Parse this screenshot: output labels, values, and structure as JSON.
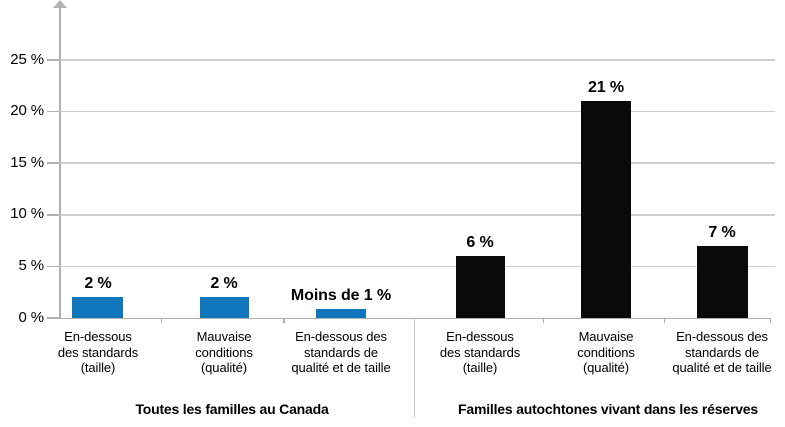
{
  "chart_data": {
    "type": "bar",
    "unit": "%",
    "y_axis": {
      "ticks": [
        0,
        5,
        10,
        15,
        20,
        25
      ],
      "tick_labels": [
        "0 %",
        "5 %",
        "10 %",
        "15 %",
        "20 %",
        "25 %"
      ],
      "range": [
        0,
        27
      ],
      "grid": true,
      "arrow_top": true
    },
    "categories": [
      {
        "lines": [
          "En-dessous",
          "des standards",
          "(taille)"
        ]
      },
      {
        "lines": [
          "Mauvaise",
          "conditions",
          "(qualité)"
        ]
      },
      {
        "lines": [
          "En-dessous des",
          "standards de",
          "qualité et de taille"
        ]
      }
    ],
    "groups": [
      {
        "title": "Toutes les familles au Canada",
        "color": "#0f76bc",
        "values": [
          2,
          2,
          0.9
        ],
        "value_labels": [
          "2 %",
          "2 %",
          "Moins de 1 %"
        ]
      },
      {
        "title": "Familles autochtones vivant dans les réserves",
        "color": "#0a0a0a",
        "values": [
          6,
          21,
          7
        ],
        "value_labels": [
          "6 %",
          "21 %",
          "7 %"
        ]
      }
    ],
    "legend": "none",
    "colors": {
      "blue_series": "#0f76bc",
      "black_series": "#0a0a0a"
    }
  }
}
